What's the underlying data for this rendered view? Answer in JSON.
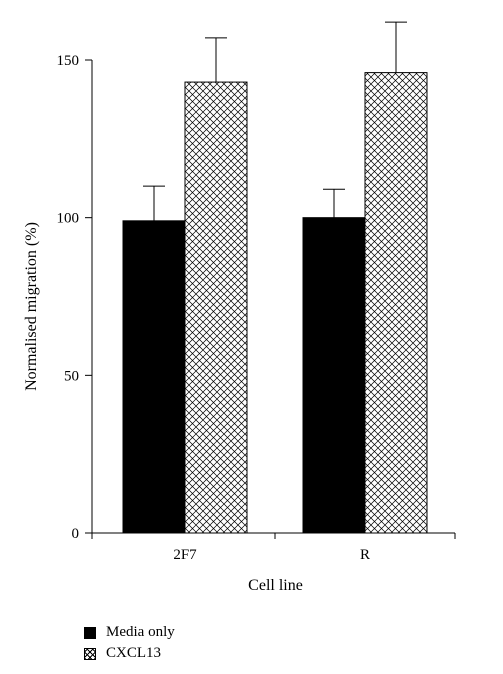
{
  "chart_data": {
    "type": "bar",
    "title": "",
    "xlabel": "Cell line",
    "ylabel": "Normalised migration (%)",
    "categories": [
      "2F7",
      "R"
    ],
    "ylim": [
      0,
      150
    ],
    "yticks": [
      0,
      50,
      100,
      150
    ],
    "ytick_labels": [
      "0",
      "50",
      "100",
      "150"
    ],
    "grid": false,
    "legend_position": "bottom-left",
    "series": [
      {
        "name": "Media only",
        "values": [
          99,
          100
        ],
        "errors": [
          11,
          9
        ],
        "fill": "solid",
        "color": "#000000"
      },
      {
        "name": "CXCL13",
        "values": [
          143,
          146
        ],
        "errors": [
          14,
          16
        ],
        "fill": "crosshatch",
        "color": "#ffffff"
      }
    ]
  }
}
